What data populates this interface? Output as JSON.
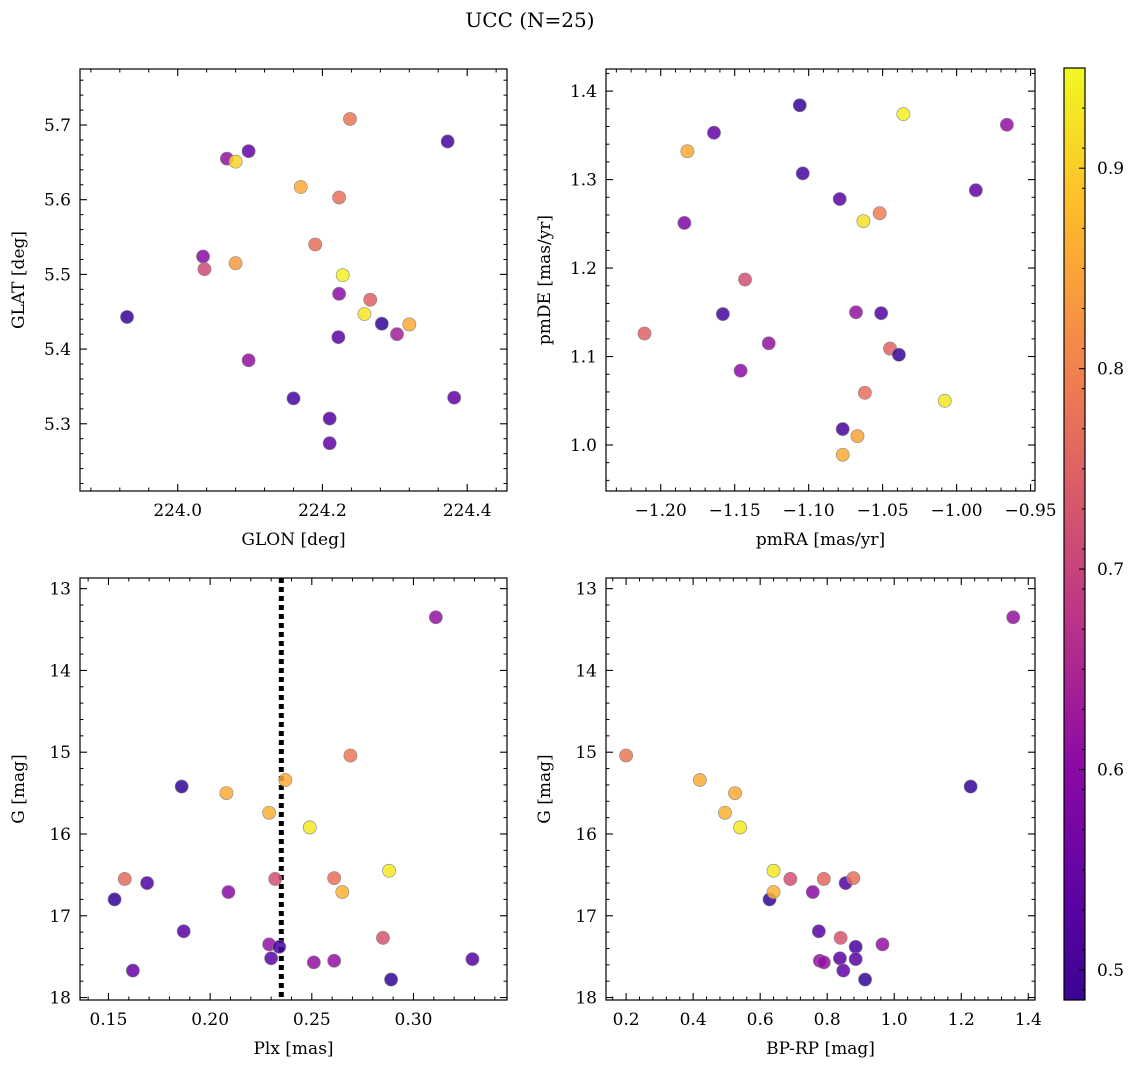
{
  "figure": {
    "title": "UCC (N=25)",
    "colormap": "plasma",
    "colorbar": {
      "range": [
        0.485,
        0.95
      ],
      "ticks": [
        0.5,
        0.6,
        0.7,
        0.8,
        0.9
      ],
      "tick_labels": [
        "0.5",
        "0.6",
        "0.7",
        "0.8",
        "0.9"
      ]
    }
  },
  "chart_data": [
    {
      "type": "scatter",
      "id": "glon-glat",
      "xlabel": "GLON [deg]",
      "ylabel": "GLAT [deg]",
      "xlim": [
        223.865,
        224.455
      ],
      "ylim": [
        5.21,
        5.775
      ],
      "xticks": [
        224.0,
        224.2,
        224.4
      ],
      "xtick_labels": [
        "224.0",
        "224.2",
        "224.4"
      ],
      "yticks": [
        5.3,
        5.4,
        5.5,
        5.6,
        5.7
      ],
      "ytick_labels": [
        "5.3",
        "5.4",
        "5.5",
        "5.6",
        "5.7"
      ],
      "points": [
        {
          "x": 223.93,
          "y": 5.443,
          "c": 0.52
        },
        {
          "x": 224.035,
          "y": 5.524,
          "c": 0.62
        },
        {
          "x": 224.037,
          "y": 5.507,
          "c": 0.72
        },
        {
          "x": 224.068,
          "y": 5.655,
          "c": 0.63
        },
        {
          "x": 224.08,
          "y": 5.651,
          "c": 0.91
        },
        {
          "x": 224.08,
          "y": 5.515,
          "c": 0.84
        },
        {
          "x": 224.098,
          "y": 5.665,
          "c": 0.57
        },
        {
          "x": 224.098,
          "y": 5.385,
          "c": 0.63
        },
        {
          "x": 224.16,
          "y": 5.334,
          "c": 0.54
        },
        {
          "x": 224.17,
          "y": 5.617,
          "c": 0.86
        },
        {
          "x": 224.19,
          "y": 5.54,
          "c": 0.78
        },
        {
          "x": 224.21,
          "y": 5.307,
          "c": 0.55
        },
        {
          "x": 224.21,
          "y": 5.274,
          "c": 0.57
        },
        {
          "x": 224.222,
          "y": 5.416,
          "c": 0.56
        },
        {
          "x": 224.223,
          "y": 5.474,
          "c": 0.62
        },
        {
          "x": 224.223,
          "y": 5.603,
          "c": 0.78
        },
        {
          "x": 224.228,
          "y": 5.499,
          "c": 0.94
        },
        {
          "x": 224.238,
          "y": 5.708,
          "c": 0.79
        },
        {
          "x": 224.258,
          "y": 5.447,
          "c": 0.93
        },
        {
          "x": 224.266,
          "y": 5.466,
          "c": 0.76
        },
        {
          "x": 224.282,
          "y": 5.434,
          "c": 0.52
        },
        {
          "x": 224.303,
          "y": 5.42,
          "c": 0.65
        },
        {
          "x": 224.32,
          "y": 5.433,
          "c": 0.86
        },
        {
          "x": 224.373,
          "y": 5.678,
          "c": 0.54
        },
        {
          "x": 224.382,
          "y": 5.335,
          "c": 0.57
        }
      ]
    },
    {
      "type": "scatter",
      "id": "pmra-pmde",
      "xlabel": "pmRA [mas/yr]",
      "ylabel": "pmDE [mas/yr]",
      "xlim": [
        -1.237,
        -0.947
      ],
      "ylim": [
        0.948,
        1.425
      ],
      "xticks": [
        -1.2,
        -1.15,
        -1.1,
        -1.05,
        -1.0,
        -0.95
      ],
      "xtick_labels": [
        "−1.20",
        "−1.15",
        "−1.10",
        "−1.05",
        "−1.00",
        "−0.95"
      ],
      "yticks": [
        1.0,
        1.1,
        1.2,
        1.3,
        1.4
      ],
      "ytick_labels": [
        "1.0",
        "1.1",
        "1.2",
        "1.3",
        "1.4"
      ],
      "points": [
        {
          "x": -1.211,
          "y": 1.126,
          "c": 0.76
        },
        {
          "x": -1.182,
          "y": 1.332,
          "c": 0.86
        },
        {
          "x": -1.184,
          "y": 1.251,
          "c": 0.6
        },
        {
          "x": -1.164,
          "y": 1.353,
          "c": 0.57
        },
        {
          "x": -1.158,
          "y": 1.148,
          "c": 0.54
        },
        {
          "x": -1.146,
          "y": 1.084,
          "c": 0.62
        },
        {
          "x": -1.143,
          "y": 1.187,
          "c": 0.73
        },
        {
          "x": -1.127,
          "y": 1.115,
          "c": 0.63
        },
        {
          "x": -1.106,
          "y": 1.384,
          "c": 0.52
        },
        {
          "x": -1.104,
          "y": 1.307,
          "c": 0.54
        },
        {
          "x": -1.079,
          "y": 1.278,
          "c": 0.56
        },
        {
          "x": -1.077,
          "y": 1.018,
          "c": 0.54
        },
        {
          "x": -1.077,
          "y": 0.989,
          "c": 0.86
        },
        {
          "x": -1.068,
          "y": 1.15,
          "c": 0.63
        },
        {
          "x": -1.067,
          "y": 1.01,
          "c": 0.85
        },
        {
          "x": -1.063,
          "y": 1.253,
          "c": 0.92
        },
        {
          "x": -1.062,
          "y": 1.059,
          "c": 0.78
        },
        {
          "x": -1.052,
          "y": 1.262,
          "c": 0.8
        },
        {
          "x": -1.051,
          "y": 1.149,
          "c": 0.55
        },
        {
          "x": -1.045,
          "y": 1.109,
          "c": 0.76
        },
        {
          "x": -1.039,
          "y": 1.102,
          "c": 0.52
        },
        {
          "x": -1.036,
          "y": 1.374,
          "c": 0.94
        },
        {
          "x": -1.008,
          "y": 1.05,
          "c": 0.93
        },
        {
          "x": -0.987,
          "y": 1.288,
          "c": 0.57
        },
        {
          "x": -0.966,
          "y": 1.362,
          "c": 0.63
        }
      ]
    },
    {
      "type": "scatter",
      "id": "plx-g",
      "xlabel": "Plx [mas]",
      "ylabel": "G [mag]",
      "xlim": [
        0.136,
        0.346
      ],
      "ylim": [
        18.03,
        12.87
      ],
      "y_inverted": true,
      "xticks": [
        0.15,
        0.2,
        0.25,
        0.3
      ],
      "xtick_labels": [
        "0.15",
        "0.20",
        "0.25",
        "0.30"
      ],
      "yticks": [
        13,
        14,
        15,
        16,
        17,
        18
      ],
      "ytick_labels": [
        "13",
        "14",
        "15",
        "16",
        "17",
        "18"
      ],
      "vline": {
        "x": 0.235,
        "style": "dotted"
      },
      "points": [
        {
          "x": 0.153,
          "y": 16.8,
          "c": 0.52
        },
        {
          "x": 0.158,
          "y": 16.55,
          "c": 0.77
        },
        {
          "x": 0.162,
          "y": 17.67,
          "c": 0.57
        },
        {
          "x": 0.169,
          "y": 16.6,
          "c": 0.55
        },
        {
          "x": 0.186,
          "y": 15.42,
          "c": 0.52
        },
        {
          "x": 0.187,
          "y": 17.19,
          "c": 0.56
        },
        {
          "x": 0.208,
          "y": 15.5,
          "c": 0.86
        },
        {
          "x": 0.209,
          "y": 16.71,
          "c": 0.62
        },
        {
          "x": 0.229,
          "y": 17.35,
          "c": 0.63
        },
        {
          "x": 0.229,
          "y": 15.74,
          "c": 0.87
        },
        {
          "x": 0.23,
          "y": 17.52,
          "c": 0.56
        },
        {
          "x": 0.232,
          "y": 16.55,
          "c": 0.73
        },
        {
          "x": 0.234,
          "y": 17.38,
          "c": 0.54
        },
        {
          "x": 0.237,
          "y": 15.34,
          "c": 0.86
        },
        {
          "x": 0.249,
          "y": 15.92,
          "c": 0.93
        },
        {
          "x": 0.251,
          "y": 17.57,
          "c": 0.63
        },
        {
          "x": 0.261,
          "y": 17.55,
          "c": 0.63
        },
        {
          "x": 0.261,
          "y": 16.54,
          "c": 0.78
        },
        {
          "x": 0.265,
          "y": 16.71,
          "c": 0.87
        },
        {
          "x": 0.269,
          "y": 15.04,
          "c": 0.79
        },
        {
          "x": 0.285,
          "y": 17.27,
          "c": 0.74
        },
        {
          "x": 0.288,
          "y": 16.45,
          "c": 0.93
        },
        {
          "x": 0.289,
          "y": 17.78,
          "c": 0.52
        },
        {
          "x": 0.311,
          "y": 13.35,
          "c": 0.63
        },
        {
          "x": 0.329,
          "y": 17.53,
          "c": 0.56
        }
      ]
    },
    {
      "type": "scatter",
      "id": "bprp-g",
      "xlabel": "BP-RP [mag]",
      "ylabel": "G [mag]",
      "xlim": [
        0.14,
        1.42
      ],
      "ylim": [
        18.03,
        12.87
      ],
      "y_inverted": true,
      "xticks": [
        0.2,
        0.4,
        0.6,
        0.8,
        1.0,
        1.2,
        1.4
      ],
      "xtick_labels": [
        "0.2",
        "0.4",
        "0.6",
        "0.8",
        "1.0",
        "1.2",
        "1.4"
      ],
      "yticks": [
        13,
        14,
        15,
        16,
        17,
        18
      ],
      "ytick_labels": [
        "13",
        "14",
        "15",
        "16",
        "17",
        "18"
      ],
      "points": [
        {
          "x": 0.2,
          "y": 15.04,
          "c": 0.79
        },
        {
          "x": 0.42,
          "y": 15.34,
          "c": 0.86
        },
        {
          "x": 0.495,
          "y": 15.74,
          "c": 0.87
        },
        {
          "x": 0.525,
          "y": 15.5,
          "c": 0.86
        },
        {
          "x": 0.54,
          "y": 15.92,
          "c": 0.93
        },
        {
          "x": 0.628,
          "y": 16.8,
          "c": 0.52
        },
        {
          "x": 0.64,
          "y": 16.45,
          "c": 0.93
        },
        {
          "x": 0.64,
          "y": 16.71,
          "c": 0.87
        },
        {
          "x": 0.69,
          "y": 16.55,
          "c": 0.73
        },
        {
          "x": 0.757,
          "y": 16.71,
          "c": 0.62
        },
        {
          "x": 0.775,
          "y": 17.19,
          "c": 0.56
        },
        {
          "x": 0.778,
          "y": 17.55,
          "c": 0.63
        },
        {
          "x": 0.79,
          "y": 17.57,
          "c": 0.63
        },
        {
          "x": 0.79,
          "y": 16.55,
          "c": 0.77
        },
        {
          "x": 0.838,
          "y": 17.52,
          "c": 0.56
        },
        {
          "x": 0.84,
          "y": 17.27,
          "c": 0.74
        },
        {
          "x": 0.848,
          "y": 17.67,
          "c": 0.57
        },
        {
          "x": 0.855,
          "y": 16.6,
          "c": 0.55
        },
        {
          "x": 0.878,
          "y": 16.54,
          "c": 0.78
        },
        {
          "x": 0.885,
          "y": 17.38,
          "c": 0.54
        },
        {
          "x": 0.885,
          "y": 17.53,
          "c": 0.56
        },
        {
          "x": 0.913,
          "y": 17.78,
          "c": 0.52
        },
        {
          "x": 0.965,
          "y": 17.35,
          "c": 0.63
        },
        {
          "x": 1.228,
          "y": 15.42,
          "c": 0.52
        },
        {
          "x": 1.355,
          "y": 13.35,
          "c": 0.63
        }
      ]
    }
  ]
}
